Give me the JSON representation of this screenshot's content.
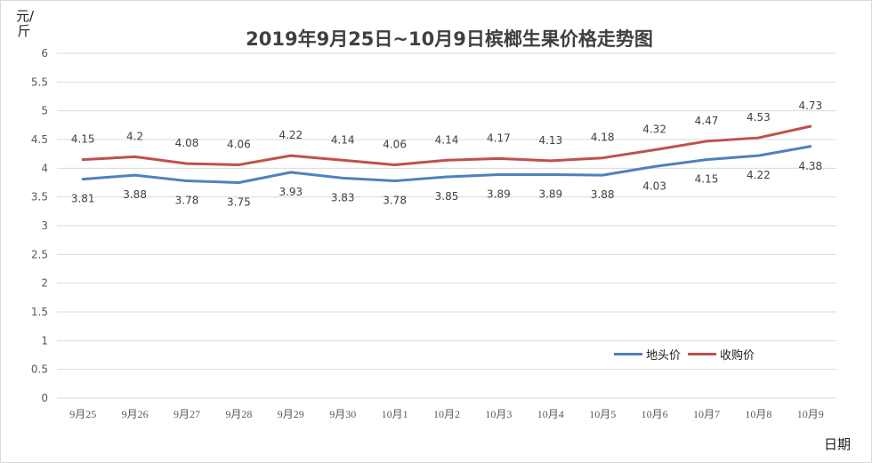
{
  "chart_data": {
    "type": "line",
    "title": "2019年9月25日~10月9日槟榔生果价格走势图",
    "xlabel": "日期",
    "ylabel": "元/斤",
    "ylim": [
      0,
      6
    ],
    "y_ticks": [
      "0",
      "0.5",
      "1",
      "1.5",
      "2",
      "2.5",
      "3",
      "3.5",
      "4",
      "4.5",
      "5",
      "5.5",
      "6"
    ],
    "categories": [
      "9月25",
      "9月26",
      "9月27",
      "9月28",
      "9月29",
      "9月30",
      "10月1",
      "10月2",
      "10月3",
      "10月4",
      "10月5",
      "10月6",
      "10月7",
      "10月8",
      "10月9"
    ],
    "grid": true,
    "legend_position": "bottom-right",
    "series": [
      {
        "name": "地头价",
        "color": "#4f81bd",
        "values": [
          3.81,
          3.88,
          3.78,
          3.75,
          3.93,
          3.83,
          3.78,
          3.85,
          3.89,
          3.89,
          3.88,
          4.03,
          4.15,
          4.22,
          4.38
        ],
        "labels": [
          "3.81",
          "3.88",
          "3.78",
          "3.75",
          "3.93",
          "3.83",
          "3.78",
          "3.85",
          "3.89",
          "3.89",
          "3.88",
          "4.03",
          "4.15",
          "4.22",
          "4.38"
        ]
      },
      {
        "name": "收购价",
        "color": "#c0504d",
        "values": [
          4.15,
          4.2,
          4.08,
          4.06,
          4.22,
          4.14,
          4.06,
          4.14,
          4.17,
          4.13,
          4.18,
          4.32,
          4.47,
          4.53,
          4.73
        ],
        "labels": [
          "4.15",
          "4.2",
          "4.08",
          "4.06",
          "4.22",
          "4.14",
          "4.06",
          "4.14",
          "4.17",
          "4.13",
          "4.18",
          "4.32",
          "4.47",
          "4.53",
          "4.73"
        ]
      }
    ]
  }
}
